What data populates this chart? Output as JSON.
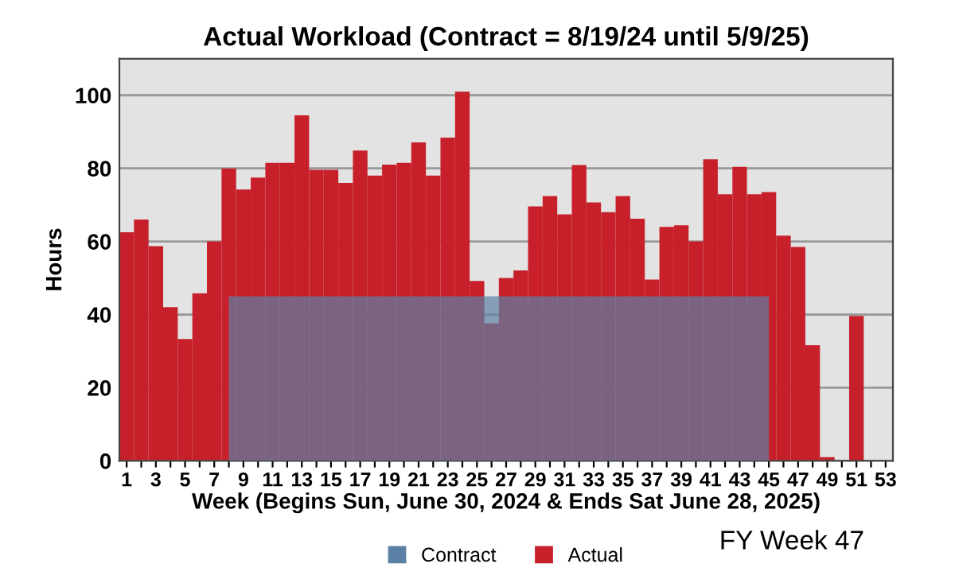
{
  "chart_data": {
    "type": "bar",
    "title": "Actual Workload (Contract = 8/19/24 until 5/9/25)",
    "xlabel": "Week (Begins Sun, June 30, 2024 & Ends Sat June 28, 2025)",
    "ylabel": "Hours",
    "categories": [
      "1",
      null,
      "3",
      null,
      "5",
      null,
      "7",
      null,
      "9",
      null,
      "11",
      null,
      "13",
      null,
      "15",
      null,
      "17",
      null,
      "19",
      null,
      "21",
      null,
      "23",
      null,
      "25",
      null,
      "27",
      null,
      "29",
      null,
      "31",
      null,
      "33",
      null,
      "35",
      null,
      "37",
      null,
      "39",
      null,
      "41",
      null,
      "43",
      null,
      "45",
      null,
      "47",
      null,
      "49",
      null,
      "51",
      null,
      "53"
    ],
    "series": [
      {
        "name": "Contract",
        "type": "area",
        "color": "#5b80a5",
        "values": [
          null,
          null,
          null,
          null,
          null,
          null,
          null,
          45,
          45,
          45,
          45,
          45,
          45,
          45,
          45,
          45,
          45,
          45,
          45,
          45,
          45,
          45,
          45,
          45,
          45,
          45,
          45,
          45,
          45,
          45,
          45,
          45,
          45,
          45,
          45,
          45,
          45,
          45,
          45,
          45,
          45,
          45,
          45,
          45,
          45,
          null,
          null,
          null,
          null,
          null,
          null,
          null,
          null
        ]
      },
      {
        "name": "Actual",
        "color": "#c8202a",
        "values": [
          62.5,
          66,
          58.7,
          42,
          33.3,
          45.8,
          60,
          80,
          74.2,
          77.5,
          81.5,
          81.5,
          94.5,
          79.6,
          79.6,
          76,
          84.9,
          78,
          81,
          81.5,
          87.1,
          78,
          88.4,
          101,
          49.2,
          37.6,
          50,
          52.1,
          69.6,
          72.4,
          67.4,
          80.9,
          70.7,
          68,
          72.4,
          66.2,
          49.6,
          64,
          64.4,
          60,
          82.5,
          72.9,
          80.4,
          72.9,
          73.5,
          61.6,
          58.5,
          31.6,
          1,
          null,
          39.6,
          0,
          0
        ]
      }
    ],
    "ylim": [
      0,
      110
    ],
    "yticks": [
      0,
      20,
      40,
      60,
      80,
      100
    ],
    "grid": "y",
    "legend": "bottom",
    "annotations": [
      "FY Week 47"
    ]
  }
}
